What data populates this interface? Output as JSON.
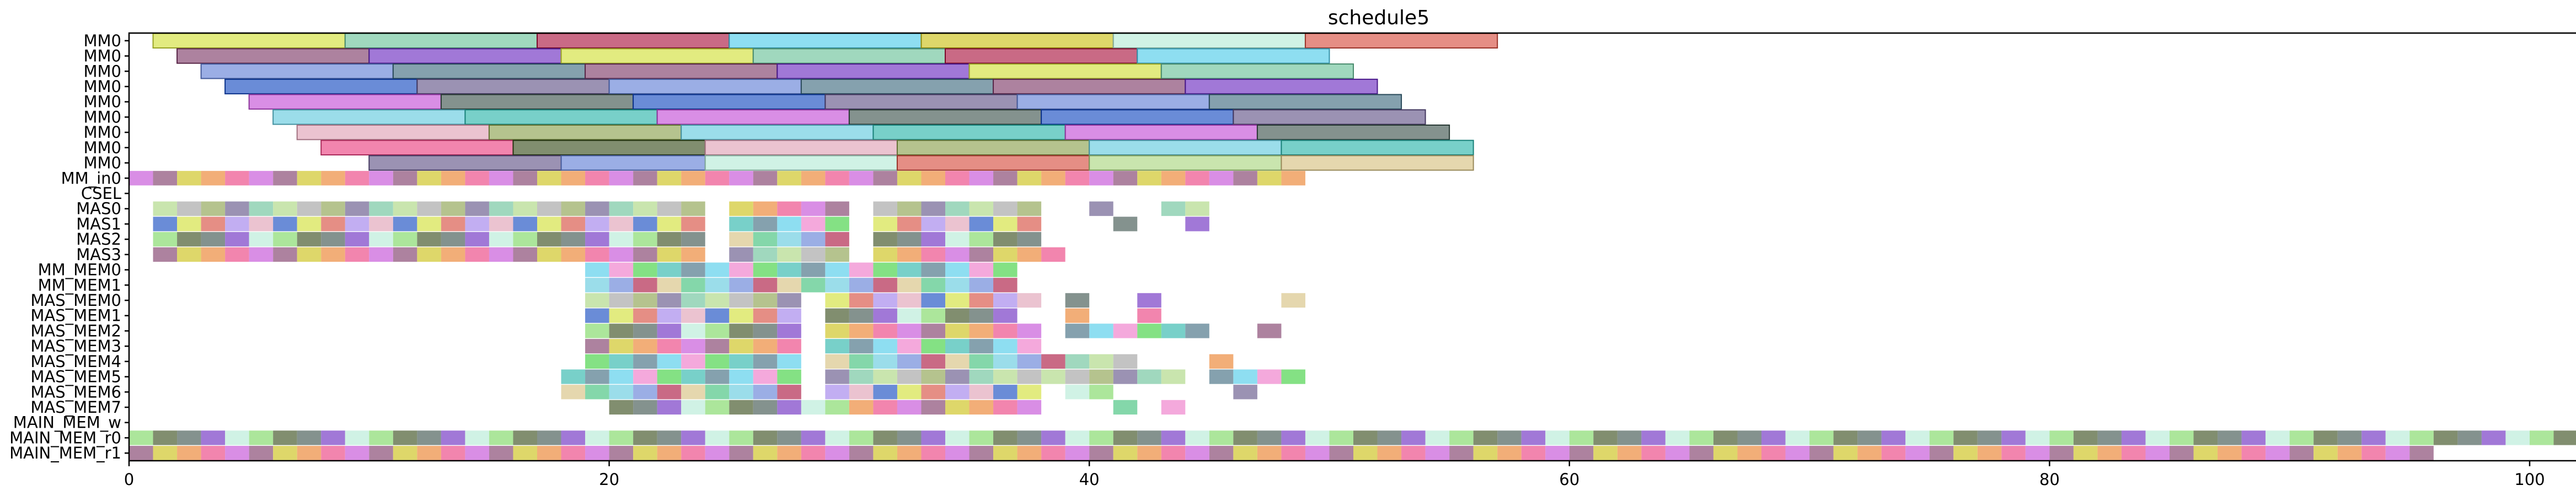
{
  "chart_data": {
    "type": "gantt",
    "title": "schedule5",
    "xlabel": "",
    "ylabel": "",
    "xlim": [
      0,
      102
    ],
    "xticks": [
      0,
      20,
      40,
      60,
      80,
      100
    ],
    "grid": false,
    "legend": "none",
    "resources": [
      "MM0",
      "MM0",
      "MM0",
      "MM0",
      "MM0",
      "MM0",
      "MM0",
      "MM0",
      "MM0",
      "MM_in0",
      "CSEL",
      "MAS0",
      "MAS1",
      "MAS2",
      "MAS3",
      "MM_MEM0",
      "MM_MEM1",
      "MAS_MEM0",
      "MAS_MEM1",
      "MAS_MEM2",
      "MAS_MEM3",
      "MAS_MEM4",
      "MAS_MEM5",
      "MAS_MEM6",
      "MAS_MEM7",
      "MAIN_MEM_w",
      "MAIN_MEM_r0",
      "MAIN_MEM_r1"
    ],
    "intervals": [
      [
        [
          1,
          9
        ],
        [
          9,
          17
        ],
        [
          17,
          25
        ],
        [
          25,
          33
        ],
        [
          33,
          41
        ],
        [
          41,
          49
        ],
        [
          49,
          57
        ]
      ],
      [
        [
          2,
          10
        ],
        [
          10,
          18
        ],
        [
          18,
          26
        ],
        [
          26,
          34
        ],
        [
          34,
          42
        ],
        [
          42,
          50
        ]
      ],
      [
        [
          3,
          11
        ],
        [
          11,
          19
        ],
        [
          19,
          27
        ],
        [
          27,
          35
        ],
        [
          35,
          43
        ],
        [
          43,
          51
        ]
      ],
      [
        [
          4,
          12
        ],
        [
          12,
          20
        ],
        [
          20,
          28
        ],
        [
          28,
          36
        ],
        [
          36,
          44
        ],
        [
          44,
          52
        ]
      ],
      [
        [
          5,
          13
        ],
        [
          13,
          21
        ],
        [
          21,
          29
        ],
        [
          29,
          37
        ],
        [
          37,
          45
        ],
        [
          45,
          53
        ]
      ],
      [
        [
          6,
          14
        ],
        [
          14,
          22
        ],
        [
          22,
          30
        ],
        [
          30,
          38
        ],
        [
          38,
          46
        ],
        [
          46,
          54
        ]
      ],
      [
        [
          7,
          15
        ],
        [
          15,
          23
        ],
        [
          23,
          31
        ],
        [
          31,
          39
        ],
        [
          39,
          47
        ],
        [
          47,
          55
        ]
      ],
      [
        [
          8,
          16
        ],
        [
          16,
          24
        ],
        [
          24,
          32
        ],
        [
          32,
          40
        ],
        [
          40,
          48
        ],
        [
          48,
          56
        ]
      ],
      [
        [
          10,
          18
        ],
        [
          18,
          24
        ],
        [
          24,
          32
        ],
        [
          32,
          40
        ],
        [
          40,
          48
        ],
        [
          48,
          56
        ]
      ],
      [
        [
          0,
          49
        ]
      ],
      [],
      [
        [
          1,
          24
        ],
        [
          25,
          30
        ],
        [
          31,
          38
        ],
        [
          40,
          41
        ],
        [
          43,
          45
        ]
      ],
      [
        [
          1,
          24
        ],
        [
          25,
          30
        ],
        [
          31,
          38
        ],
        [
          41,
          42
        ],
        [
          44,
          45
        ]
      ],
      [
        [
          1,
          24
        ],
        [
          25,
          30
        ],
        [
          31,
          38
        ]
      ],
      [
        [
          1,
          24
        ],
        [
          25,
          30
        ],
        [
          31,
          39
        ]
      ],
      [
        [
          19,
          37
        ]
      ],
      [
        [
          19,
          37
        ]
      ],
      [
        [
          19,
          28
        ],
        [
          29,
          38
        ],
        [
          39,
          40
        ],
        [
          42,
          43
        ],
        [
          48,
          49
        ]
      ],
      [
        [
          19,
          28
        ],
        [
          29,
          37
        ],
        [
          39,
          40
        ],
        [
          42,
          43
        ]
      ],
      [
        [
          19,
          28
        ],
        [
          29,
          38
        ],
        [
          39,
          45
        ],
        [
          47,
          48
        ]
      ],
      [
        [
          19,
          28
        ],
        [
          29,
          38
        ]
      ],
      [
        [
          19,
          28
        ],
        [
          29,
          39
        ],
        [
          39,
          42
        ],
        [
          45,
          46
        ]
      ],
      [
        [
          18,
          28
        ],
        [
          29,
          38
        ],
        [
          38,
          44
        ],
        [
          45,
          49
        ]
      ],
      [
        [
          18,
          28
        ],
        [
          29,
          38
        ],
        [
          39,
          41
        ],
        [
          46,
          47
        ]
      ],
      [
        [
          20,
          30
        ],
        [
          30,
          38
        ],
        [
          41,
          42
        ],
        [
          43,
          44
        ]
      ],
      [],
      [
        [
          0,
          102
        ]
      ],
      [
        [
          0,
          96
        ]
      ]
    ]
  },
  "palette": [
    "#a8b87a",
    "#dde86a",
    "#9ee28a",
    "#d27ae0",
    "#7ad8ef",
    "#6fd09b",
    "#8a7fa6",
    "#e07a70",
    "#6b7a56",
    "#9f6c8e",
    "#f29ad6",
    "#8ad7e6",
    "#8fd1b3",
    "#b7a0f0",
    "#6e7f7a",
    "#d8d050",
    "#6fdc6f",
    "#8aa0e0",
    "#c0e0a0",
    "#e8b8c8",
    "#9060d0",
    "#f0a060",
    "#60c8c0",
    "#c05070",
    "#b8b8b8",
    "#5078d0",
    "#c8f0e0",
    "#f070a0",
    "#7090a0",
    "#e0d0a0"
  ]
}
